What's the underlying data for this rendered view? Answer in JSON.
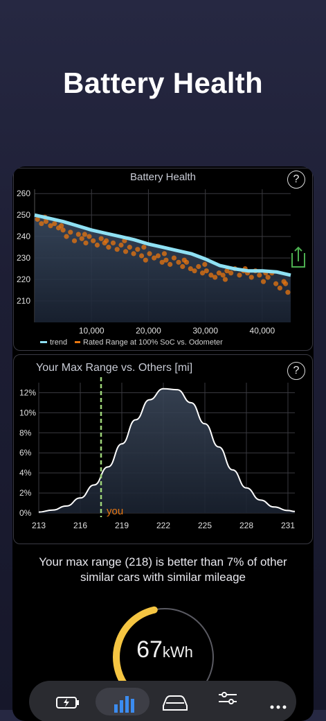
{
  "page": {
    "title": "Battery Health"
  },
  "card1": {
    "title": "Battery Health",
    "help": "?",
    "share_icon": "share-icon",
    "legend": {
      "trend": "trend",
      "points": "Rated Range at 100% SoC vs. Odometer"
    }
  },
  "card2": {
    "title": "Your Max Range vs. Others [mi]",
    "help": "?",
    "marker_label": "you"
  },
  "summary": {
    "line1": "Your max range (218) is better than 7% of other",
    "line2": "similar cars with similar mileage"
  },
  "gauge": {
    "value": "67",
    "unit": "kWh",
    "fraction": 0.45
  },
  "tabbar": {
    "items": [
      "battery-charging-icon",
      "bar-chart-icon",
      "car-icon",
      "sliders-icon",
      "more-icon"
    ],
    "active_index": 1
  },
  "colors": {
    "trend": "#8fe1f4",
    "points": "#e8760f",
    "accent": "#f5c542",
    "marker": "#9fd67a"
  },
  "chart_data": [
    {
      "type": "scatter",
      "title": "Battery Health",
      "xlabel": "",
      "ylabel": "",
      "xlim": [
        0,
        45000
      ],
      "ylim": [
        200,
        262
      ],
      "xticks": [
        10000,
        20000,
        30000,
        40000
      ],
      "xtick_labels": [
        "10,000",
        "20,000",
        "30,000",
        "40,000"
      ],
      "yticks": [
        210,
        220,
        230,
        240,
        250,
        260
      ],
      "grid": true,
      "legend": "bottom",
      "series": [
        {
          "name": "trend",
          "kind": "line",
          "x": [
            0,
            2500,
            5000,
            7500,
            10000,
            12500,
            15000,
            17500,
            20000,
            22500,
            25000,
            27500,
            30000,
            32500,
            35000,
            37500,
            40000,
            42500,
            45000
          ],
          "y": [
            250,
            248.5,
            247,
            245,
            243,
            241.5,
            240,
            238.5,
            236.5,
            235,
            233.5,
            232,
            229.5,
            226.5,
            225,
            224,
            224,
            223.5,
            222
          ]
        },
        {
          "name": "Rated Range at 100% SoC vs. Odometer",
          "kind": "scatter",
          "x": [
            500,
            1200,
            2000,
            2800,
            3500,
            4200,
            5000,
            5600,
            6300,
            7000,
            7700,
            8300,
            9000,
            9600,
            10300,
            11000,
            11700,
            12300,
            13000,
            13800,
            14500,
            15200,
            16000,
            16700,
            17400,
            18100,
            18800,
            19500,
            20200,
            21000,
            21700,
            22400,
            23100,
            23800,
            24500,
            25300,
            26000,
            26700,
            27400,
            28100,
            28800,
            29500,
            30200,
            31000,
            31700,
            32400,
            33100,
            33800,
            34500,
            35200,
            36000,
            36700,
            37400,
            38100,
            38800,
            39500,
            40200,
            41000,
            41700,
            42400,
            43100,
            43800,
            44500,
            1800,
            4700,
            8800,
            12600,
            15800,
            19200,
            22800,
            26300,
            29900,
            33500,
            37000,
            40600,
            44100
          ],
          "y": [
            248,
            246,
            247,
            245,
            246,
            244,
            243,
            240,
            242,
            238,
            241,
            239,
            237,
            240,
            238,
            236,
            239,
            237,
            235,
            237,
            234,
            236,
            233,
            235,
            232,
            234,
            231,
            229,
            232,
            230,
            231,
            228,
            229,
            227,
            230,
            228,
            226,
            228,
            225,
            224,
            226,
            223,
            224,
            222,
            221,
            223,
            222,
            224,
            223,
            225,
            222,
            224,
            223,
            221,
            224,
            222,
            219,
            221,
            223,
            218,
            216,
            219,
            214,
            249,
            245,
            241,
            238,
            238,
            235,
            232,
            229,
            227,
            220,
            225,
            223,
            218
          ]
        }
      ]
    },
    {
      "type": "area",
      "title": "Your Max Range vs. Others [mi]",
      "xlabel": "",
      "ylabel": "",
      "xlim": [
        213,
        231.5
      ],
      "ylim": [
        0,
        13
      ],
      "xticks": [
        213,
        216,
        219,
        222,
        225,
        228,
        231
      ],
      "yticks": [
        0,
        2,
        4,
        6,
        8,
        10,
        12
      ],
      "ytick_suffix": "%",
      "grid": true,
      "series": [
        {
          "name": "",
          "kind": "line",
          "x": [
            213,
            214,
            215,
            216,
            217,
            218,
            219,
            220,
            221,
            222,
            223,
            224,
            225,
            226,
            227,
            228,
            229,
            230,
            231,
            231.5
          ],
          "y": [
            0.1,
            0.3,
            0.7,
            1.5,
            2.8,
            4.6,
            6.9,
            9.3,
            11.3,
            12.4,
            12.3,
            11.0,
            8.9,
            6.6,
            4.3,
            2.5,
            1.3,
            0.6,
            0.25,
            0.15
          ]
        }
      ],
      "marker": {
        "x": 217.5,
        "label": "you"
      }
    }
  ]
}
